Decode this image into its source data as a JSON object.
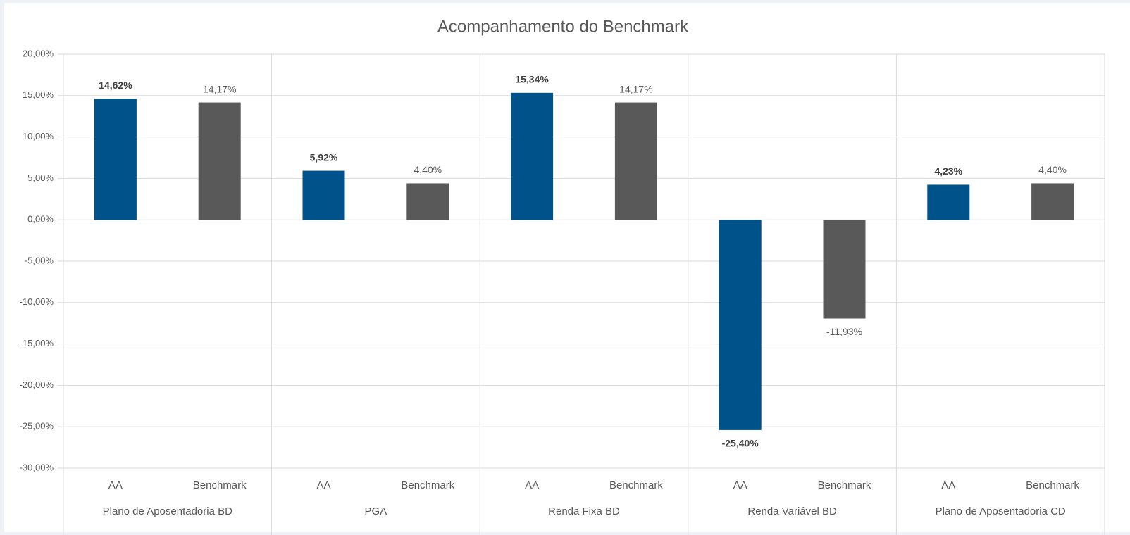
{
  "chart_data": {
    "type": "bar",
    "title": "Acompanhamento do Benchmark",
    "categories": [
      "Plano de Aposentadoria BD",
      "PGA",
      "Renda Fixa BD",
      "Renda Variável BD",
      "Plano de Aposentadoria CD"
    ],
    "series": [
      {
        "name": "AA",
        "color": "#00528a",
        "bold_labels": true,
        "values": [
          14.62,
          5.92,
          15.34,
          -25.4,
          4.23
        ],
        "value_labels": [
          "14,62%",
          "5,92%",
          "15,34%",
          "-25,40%",
          "4,23%"
        ]
      },
      {
        "name": "Benchmark",
        "color": "#595959",
        "bold_labels": false,
        "values": [
          14.17,
          4.4,
          14.17,
          -11.93,
          4.4
        ],
        "value_labels": [
          "14,17%",
          "4,40%",
          "14,17%",
          "-11,93%",
          "4,40%"
        ]
      }
    ],
    "ylim": [
      -30,
      20
    ],
    "yticks": [
      {
        "value": -30,
        "label": "-30,00%"
      },
      {
        "value": -25,
        "label": "-25,00%"
      },
      {
        "value": -20,
        "label": "-20,00%"
      },
      {
        "value": -15,
        "label": "-15,00%"
      },
      {
        "value": -10,
        "label": "-10,00%"
      },
      {
        "value": -5,
        "label": "-5,00%"
      },
      {
        "value": 0,
        "label": "0,00%"
      },
      {
        "value": 5,
        "label": "5,00%"
      },
      {
        "value": 10,
        "label": "10,00%"
      },
      {
        "value": 15,
        "label": "15,00%"
      },
      {
        "value": 20,
        "label": "20,00%"
      }
    ],
    "grid": true
  }
}
